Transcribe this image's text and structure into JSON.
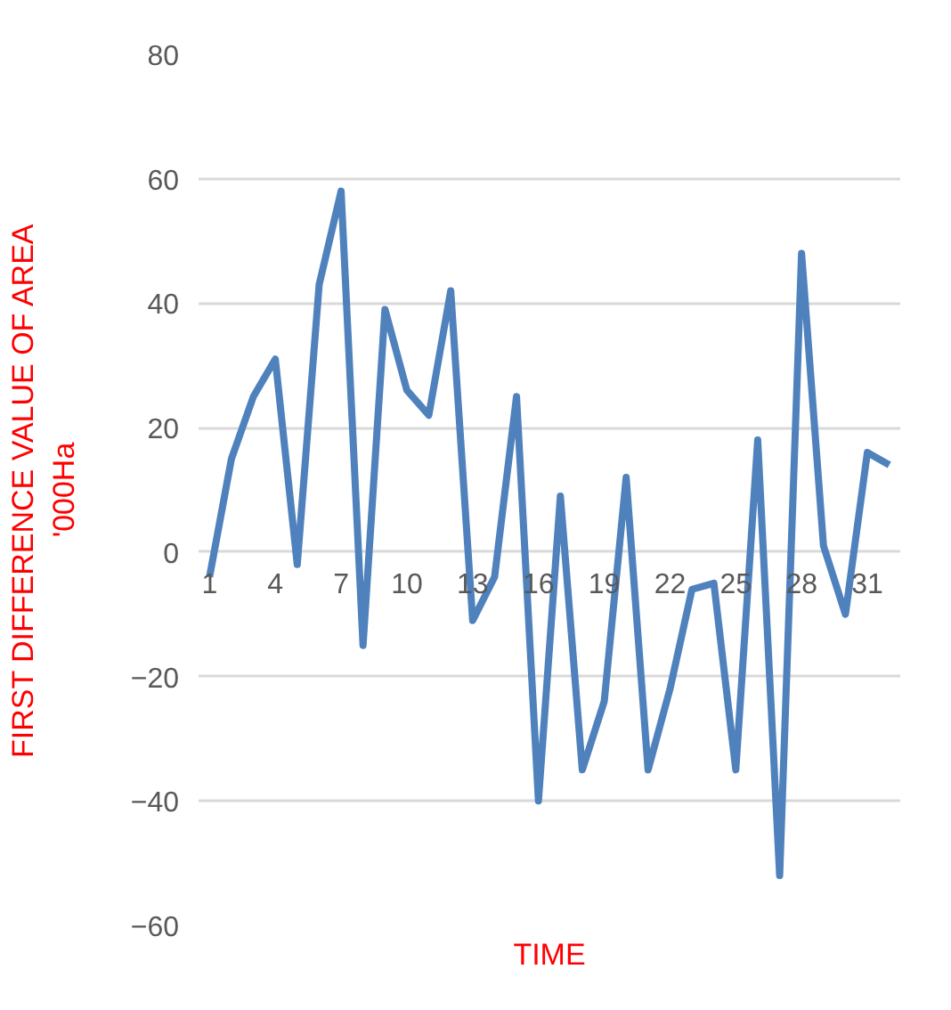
{
  "chart_data": {
    "type": "line",
    "xlabel": "TIME",
    "ylabel": "FIRST DIFFERENCE VALUE OF AREA\n'000Ha",
    "categories": [
      "1",
      null,
      null,
      "4",
      null,
      null,
      "7",
      null,
      null,
      "10",
      null,
      null,
      "13",
      null,
      null,
      "16",
      null,
      null,
      "19",
      null,
      null,
      "22",
      null,
      null,
      "25",
      null,
      null,
      "28",
      null,
      null,
      "31",
      null
    ],
    "series": [
      {
        "color": "#4f81bd",
        "values": [
          -4,
          15,
          25,
          31,
          -2,
          43,
          58,
          -15,
          39,
          26,
          22,
          42,
          -11,
          -4,
          25,
          -40,
          9,
          -35,
          -24,
          12,
          -35,
          -22,
          -6,
          -5,
          -35,
          18,
          -52,
          48,
          1,
          -10,
          16,
          14
        ]
      }
    ],
    "ylim": [
      -60,
      80
    ],
    "yticks": [
      -60,
      -40,
      -20,
      0,
      20,
      40,
      60,
      80
    ],
    "grid": "y",
    "marker": "none",
    "line_style": "solid"
  }
}
